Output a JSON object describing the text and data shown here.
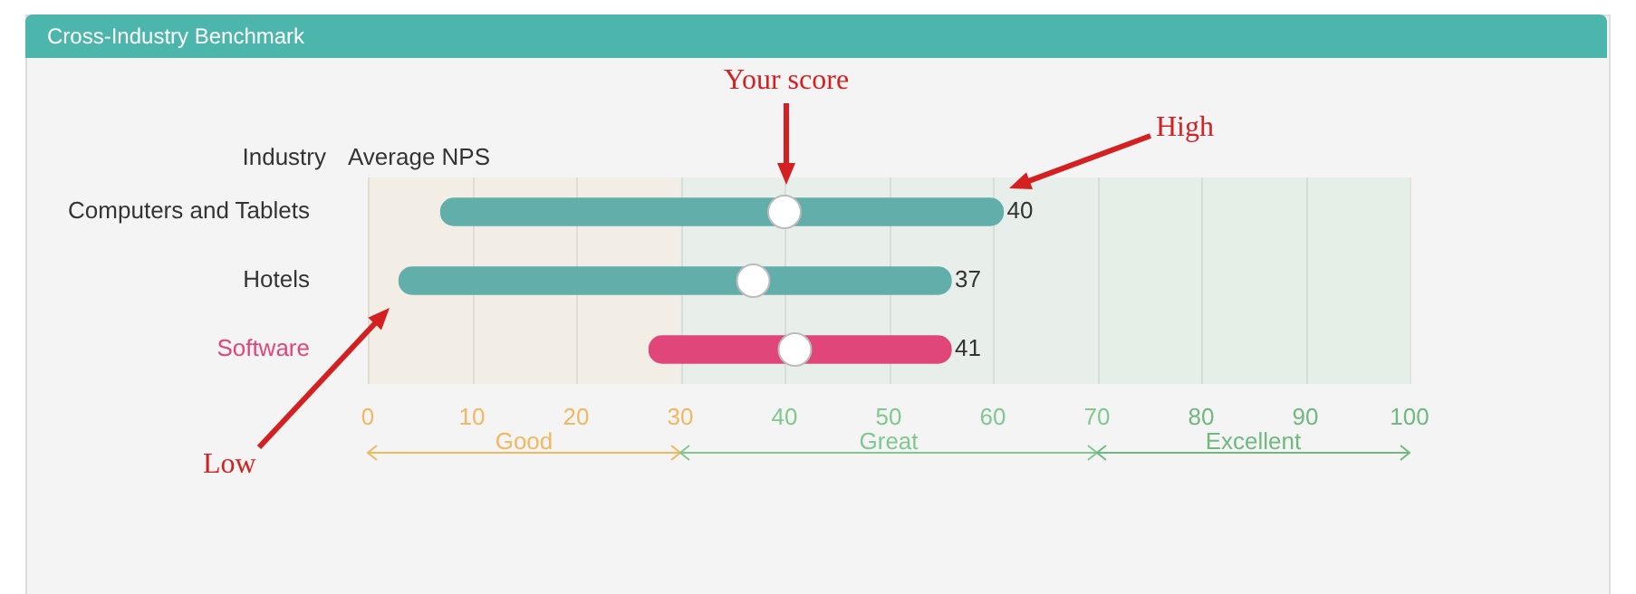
{
  "chart_data": {
    "type": "bar",
    "orientation": "horizontal",
    "title": "Cross-Industry Benchmark",
    "ylabel": "Industry",
    "xlabel": "Average NPS",
    "categories": [
      "Computers and Tablets",
      "Hotels",
      "Software"
    ],
    "series": [
      {
        "colors": [
          "#62aeab",
          "#62aeab",
          "#e0467a"
        ],
        "base": [
          7,
          3,
          27
        ],
        "values": [
          54,
          53,
          29
        ]
      },
      {
        "type": "scatter",
        "color": "#ffffff",
        "marker": "circle",
        "x": [
          "Computers and Tablets",
          "Hotels",
          "Software"
        ],
        "values": [
          40,
          37,
          41
        ]
      }
    ],
    "xlim": [
      0,
      100
    ],
    "xticks": [
      0,
      10,
      20,
      30,
      40,
      50,
      60,
      70,
      80,
      90,
      100
    ],
    "grid": "x",
    "legend": false,
    "bands": [
      {
        "axis": "x",
        "from": 0,
        "to": 30,
        "label": "Good",
        "color": "#f0b860"
      },
      {
        "axis": "x",
        "from": 30,
        "to": 70,
        "label": "Great",
        "color": "#80c890"
      },
      {
        "axis": "x",
        "from": 70,
        "to": 100,
        "label": "Excellent",
        "color": "#70b880"
      }
    ],
    "annotations": [
      "Your score",
      "High",
      "Low",
      "40",
      "37",
      "41"
    ]
  }
}
